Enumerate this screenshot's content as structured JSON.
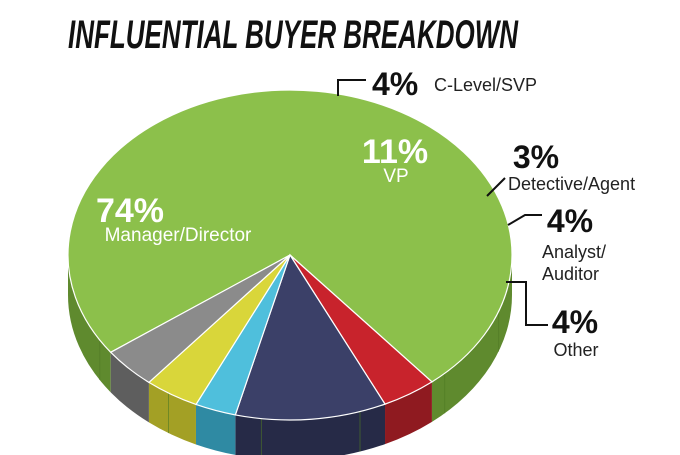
{
  "chart_data": {
    "type": "pie",
    "title": "INFLUENTIAL BUYER BREAKDOWN",
    "slices": [
      {
        "pct_label": "74%",
        "label": "Manager/Director",
        "value": 74,
        "color": "#8cc04b",
        "side_color": "#5f8a2e"
      },
      {
        "pct_label": "4%",
        "label": "C-Level/SVP",
        "value": 4,
        "color": "#c8232c",
        "side_color": "#8f1a20"
      },
      {
        "pct_label": "11%",
        "label": "VP",
        "value": 11,
        "color": "#3b4068",
        "side_color": "#262a47"
      },
      {
        "pct_label": "3%",
        "label": "Detective/Agent",
        "value": 3,
        "color": "#4fbfdc",
        "side_color": "#2f8aa3"
      },
      {
        "pct_label": "4%",
        "label": "Analyst/ Auditor",
        "value": 4,
        "color": "#d9d63a",
        "side_color": "#a3a025"
      },
      {
        "pct_label": "4%",
        "label": "Other",
        "value": 4,
        "color": "#8b8b8b",
        "side_color": "#5e5e5e"
      }
    ]
  }
}
